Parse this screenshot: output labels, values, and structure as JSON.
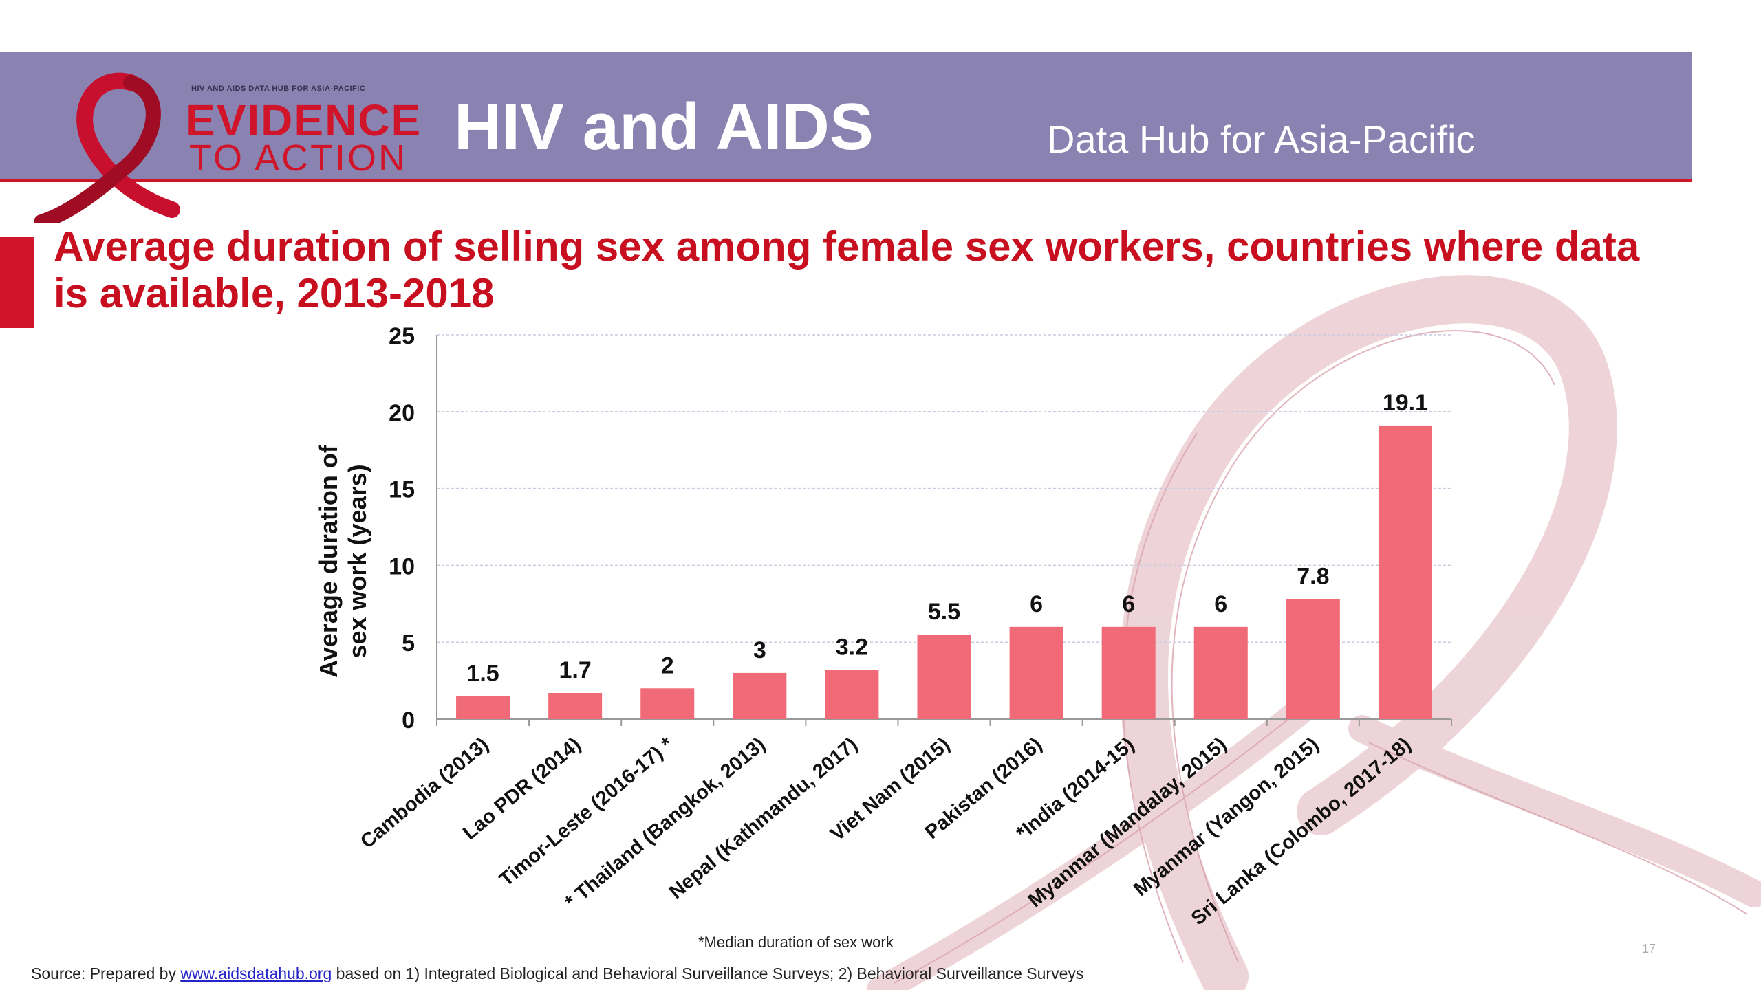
{
  "header": {
    "logo_top": "HIV AND AIDS DATA HUB FOR ASIA-PACIFIC",
    "logo_line1": "EVIDENCE",
    "logo_line2": "TO ACTION",
    "title": "HIV and AIDS",
    "subtitle": "Data Hub for Asia-Pacific"
  },
  "chart_data": {
    "type": "bar",
    "title": "Average duration of selling sex among female sex workers, countries where data is available, 2013-2018",
    "ylabel": "Average duration of sex work (years)",
    "ylabel_lines": [
      "Average duration of",
      "sex work (years)"
    ],
    "xlabel": "",
    "ylim": [
      0,
      25
    ],
    "yticks": [
      0,
      5,
      10,
      15,
      20,
      25
    ],
    "grid": true,
    "bar_color": "#f06a78",
    "categories": [
      "Cambodia (2013)",
      "Lao PDR (2014)",
      "Timor-Leste (2016-17) *",
      "* Thailand (Bangkok, 2013)",
      "Nepal (Kathmandu, 2017)",
      "Viet Nam (2015)",
      "Pakistan (2016)",
      "*India (2014-15)",
      "Myanmar (Mandalay, 2015)",
      "Myanmar (Yangon, 2015)",
      "Sri Lanka (Colombo, 2017-18)"
    ],
    "values": [
      1.5,
      1.7,
      2,
      3,
      3.2,
      5.5,
      6,
      6,
      6,
      7.8,
      19.1
    ],
    "value_labels": [
      "1.5",
      "1.7",
      "2",
      "3",
      "3.2",
      "5.5",
      "6",
      "6",
      "6",
      "7.8",
      "19.1"
    ]
  },
  "footnote": "*Median duration of sex work",
  "source": {
    "prefix": "Source: Prepared by ",
    "link": "www.aidsdatahub.org",
    "suffix": " based on 1) Integrated Biological and Behavioral Surveillance Surveys; 2) Behavioral Surveillance Surveys"
  },
  "page_number": "17"
}
